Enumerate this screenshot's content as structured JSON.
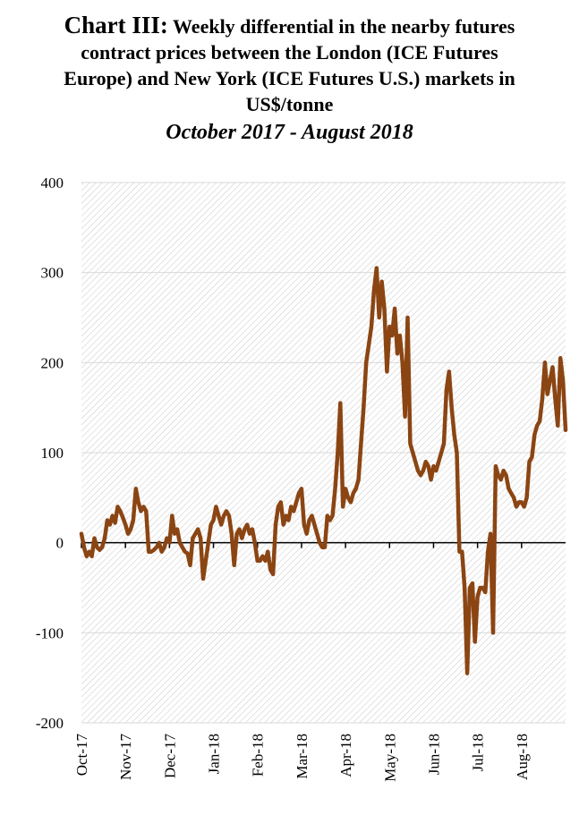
{
  "title": {
    "prefix": "Chart III:",
    "text": "Weekly differential in the nearby futures contract prices between the London (ICE Futures Europe) and New York (ICE Futures U.S.) markets in US$/tonne",
    "line1": "Weekly differential in the nearby futures",
    "line2": "contract prices between the London (ICE Futures",
    "line3": "Europe) and New York (ICE Futures U.S.) markets in",
    "line4": "US$/tonne"
  },
  "subtitle": "October 2017 - August 2018",
  "colors": {
    "line": "#8B4513",
    "grid": "#d9d9d9",
    "hatch": "#c8c8c8",
    "zero": "#000000"
  },
  "chart_data": {
    "type": "line",
    "title": "Weekly differential in the nearby futures contract prices between the London (ICE Futures Europe) and New York (ICE Futures U.S.) markets in US$/tonne",
    "subtitle": "October 2017 - August 2018",
    "xlabel": "",
    "ylabel": "",
    "ylim": [
      -200,
      400
    ],
    "yticks": [
      -200,
      -100,
      0,
      100,
      200,
      300,
      400
    ],
    "ytick_labels": [
      "-200",
      "-100",
      "0",
      "100",
      "200",
      "300",
      "400"
    ],
    "xtick_labels": [
      "Oct-17",
      "Nov-17",
      "Dec-17",
      "Jan-18",
      "Feb-18",
      "Mar-18",
      "Apr-18",
      "May-18",
      "Jun-18",
      "Jul-18",
      "Aug-18"
    ],
    "grid": true,
    "legend": "none",
    "series": [
      {
        "values": [
          10,
          -5,
          -15,
          -10,
          -15,
          5,
          -5,
          -8,
          -5,
          5,
          25,
          20,
          30,
          22,
          40,
          35,
          28,
          20,
          10,
          15,
          25,
          60,
          45,
          35,
          40,
          35,
          -10,
          -10,
          -8,
          -5,
          0,
          -10,
          -5,
          5,
          0,
          30,
          10,
          15,
          0,
          -5,
          -10,
          -12,
          -25,
          5,
          10,
          15,
          5,
          -40,
          -20,
          0,
          20,
          25,
          40,
          30,
          20,
          30,
          35,
          30,
          10,
          -25,
          10,
          15,
          5,
          15,
          20,
          10,
          15,
          0,
          -20,
          -20,
          -15,
          -20,
          -10,
          -30,
          -35,
          20,
          40,
          45,
          20,
          30,
          25,
          40,
          35,
          45,
          55,
          60,
          20,
          10,
          25,
          30,
          20,
          10,
          0,
          -5,
          -5,
          30,
          25,
          30,
          60,
          100,
          155,
          40,
          60,
          50,
          45,
          55,
          60,
          70,
          110,
          150,
          200,
          220,
          240,
          280,
          305,
          250,
          290,
          260,
          190,
          240,
          230,
          260,
          210,
          230,
          200,
          140,
          250,
          110,
          100,
          90,
          80,
          75,
          80,
          90,
          85,
          70,
          85,
          80,
          90,
          100,
          110,
          170,
          190,
          150,
          120,
          100,
          -10,
          -10,
          -50,
          -145,
          -50,
          -45,
          -110,
          -60,
          -50,
          -50,
          -55,
          -10,
          10,
          -100,
          85,
          75,
          70,
          80,
          75,
          60,
          55,
          50,
          40,
          45,
          45,
          40,
          50,
          90,
          95,
          120,
          130,
          135,
          160,
          200,
          165,
          180,
          195,
          160,
          130,
          205,
          180,
          125
        ]
      }
    ]
  }
}
